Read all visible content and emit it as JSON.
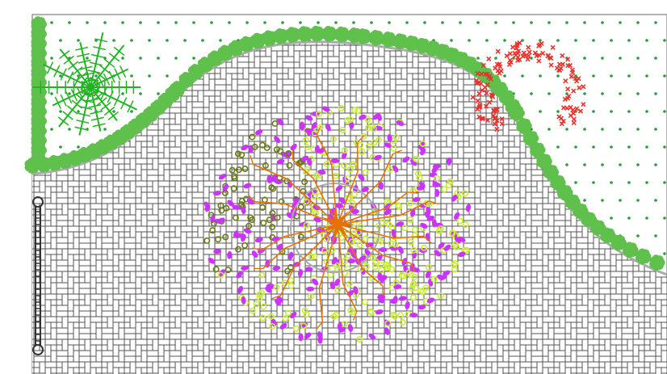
{
  "diagram": {
    "kind": "garden-landscape-plan",
    "elements": [
      {
        "id": "lawn",
        "type": "planting-area",
        "fill": "dotted-green"
      },
      {
        "id": "hedge",
        "type": "shrub-border",
        "color": "#5fc04c"
      },
      {
        "id": "paving",
        "type": "herringbone-paving",
        "color": "#555555"
      },
      {
        "id": "palm",
        "type": "palm-plant",
        "color": "#22b322"
      },
      {
        "id": "flower-bed",
        "type": "red-flower-cluster",
        "color": "#e8322c"
      },
      {
        "id": "tree",
        "type": "central-tree",
        "color": "#e67300"
      },
      {
        "id": "canopy",
        "type": "tree-canopy-foliage",
        "colors": [
          "#6b7a1a",
          "#c8ef33",
          "#cc33ff"
        ]
      },
      {
        "id": "gate",
        "type": "gate-symbol",
        "color": "#333333"
      }
    ]
  }
}
